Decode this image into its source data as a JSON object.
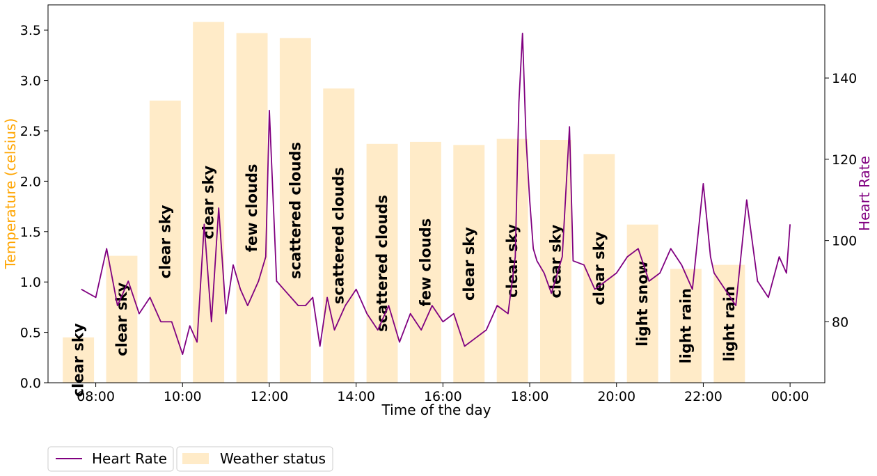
{
  "chart_data": {
    "type": "bar+line",
    "xlabel": "Time of the day",
    "ylabel_left": "Temperature (celsius)",
    "ylabel_right": "Heart Rate",
    "left_axis": {
      "min": 0,
      "max": 3.75,
      "ticks": [
        "0.0",
        "0.5",
        "1.0",
        "1.5",
        "2.0",
        "2.5",
        "3.0",
        "3.5"
      ]
    },
    "right_axis": {
      "min": 65,
      "max": 158,
      "ticks": [
        "80",
        "100",
        "120",
        "140"
      ]
    },
    "x_axis": {
      "min_hours": 6.9,
      "max_hours": 24.8,
      "ticks": [
        {
          "hour": 8,
          "label": "08:00"
        },
        {
          "hour": 10,
          "label": "10:00"
        },
        {
          "hour": 12,
          "label": "12:00"
        },
        {
          "hour": 14,
          "label": "14:00"
        },
        {
          "hour": 16,
          "label": "16:00"
        },
        {
          "hour": 18,
          "label": "18:00"
        },
        {
          "hour": 20,
          "label": "20:00"
        },
        {
          "hour": 22,
          "label": "22:00"
        },
        {
          "hour": 24,
          "label": "00:00"
        }
      ]
    },
    "bars": [
      {
        "time": "08:00",
        "temp": 0.45,
        "status": "clear sky"
      },
      {
        "time": "09:00",
        "temp": 1.26,
        "status": "clear sky"
      },
      {
        "time": "10:00",
        "temp": 2.8,
        "status": "clear sky"
      },
      {
        "time": "11:00",
        "temp": 3.58,
        "status": "clear sky"
      },
      {
        "time": "12:00",
        "temp": 3.47,
        "status": "few clouds"
      },
      {
        "time": "13:00",
        "temp": 3.42,
        "status": "scattered clouds"
      },
      {
        "time": "14:00",
        "temp": 2.92,
        "status": "scattered clouds"
      },
      {
        "time": "15:00",
        "temp": 2.37,
        "status": "scattered clouds"
      },
      {
        "time": "16:00",
        "temp": 2.39,
        "status": "few clouds"
      },
      {
        "time": "17:00",
        "temp": 2.36,
        "status": "clear sky"
      },
      {
        "time": "18:00",
        "temp": 2.42,
        "status": "clear sky"
      },
      {
        "time": "19:00",
        "temp": 2.41,
        "status": "clear sky"
      },
      {
        "time": "20:00",
        "temp": 2.27,
        "status": "clear sky"
      },
      {
        "time": "21:00",
        "temp": 1.57,
        "status": "light snow"
      },
      {
        "time": "22:00",
        "temp": 1.13,
        "status": "light rain"
      },
      {
        "time": "23:00",
        "temp": 1.17,
        "status": "light rain"
      }
    ],
    "heart_rate": {
      "name": "Heart Rate",
      "x": [
        "07:40",
        "08:00",
        "08:15",
        "08:30",
        "08:45",
        "09:00",
        "09:15",
        "09:30",
        "09:45",
        "10:00",
        "10:10",
        "10:20",
        "10:30",
        "10:40",
        "10:50",
        "11:00",
        "11:10",
        "11:20",
        "11:30",
        "11:45",
        "11:55",
        "12:00",
        "12:10",
        "12:20",
        "12:30",
        "12:40",
        "12:50",
        "13:00",
        "13:10",
        "13:20",
        "13:30",
        "13:45",
        "14:00",
        "14:15",
        "14:30",
        "14:45",
        "15:00",
        "15:15",
        "15:30",
        "15:45",
        "16:00",
        "16:15",
        "16:30",
        "16:45",
        "17:00",
        "17:15",
        "17:30",
        "17:40",
        "17:45",
        "17:50",
        "17:55",
        "18:00",
        "18:05",
        "18:10",
        "18:20",
        "18:30",
        "18:45",
        "18:55",
        "19:00",
        "19:15",
        "19:30",
        "19:45",
        "20:00",
        "20:15",
        "20:30",
        "20:45",
        "21:00",
        "21:15",
        "21:30",
        "21:45",
        "22:00",
        "22:10",
        "22:15",
        "22:30",
        "22:45",
        "23:00",
        "23:15",
        "23:30",
        "23:45",
        "23:55",
        "24:00"
      ],
      "y": [
        88,
        86,
        98,
        84,
        90,
        82,
        86,
        80,
        80,
        72,
        79,
        75,
        104,
        80,
        108,
        82,
        94,
        88,
        84,
        90,
        96,
        132,
        90,
        88,
        86,
        84,
        84,
        86,
        74,
        86,
        78,
        84,
        88,
        82,
        78,
        84,
        75,
        82,
        78,
        84,
        80,
        82,
        74,
        76,
        78,
        84,
        82,
        96,
        134,
        151,
        125,
        110,
        98,
        95,
        92,
        87,
        96,
        128,
        95,
        94,
        88,
        90,
        92,
        96,
        98,
        90,
        92,
        98,
        94,
        88,
        114,
        96,
        92,
        88,
        84,
        110,
        90,
        86,
        96,
        92,
        104
      ],
      "color": "#800080"
    },
    "legend": [
      {
        "label": "Heart Rate",
        "kind": "line",
        "color": "#800080"
      },
      {
        "label": "Weather status",
        "kind": "patch",
        "color": "#FFEBC8"
      }
    ],
    "colors": {
      "bars": "#FFEBC8",
      "left_label": "#FFA500",
      "right_label": "#800080"
    },
    "legend_position": "bottom-left (outside)"
  }
}
